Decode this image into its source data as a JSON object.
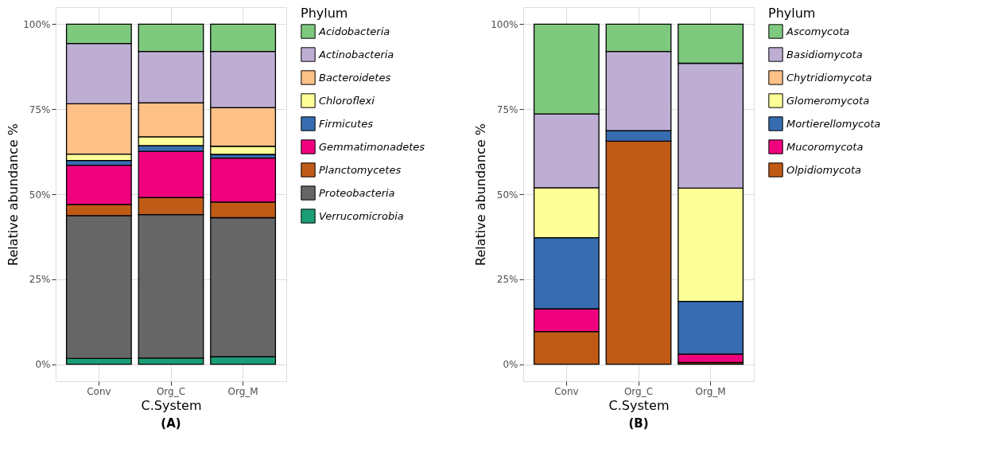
{
  "chart_data": [
    {
      "type": "bar",
      "stacked": true,
      "xlabel": "C.System",
      "ylabel": "Relative abundance %",
      "legend_title": "Phylum",
      "legend": "right",
      "grid": true,
      "categories": [
        "Conv",
        "Org_C",
        "Org_M"
      ],
      "ylim": [
        -5,
        105
      ],
      "yticks": [
        {
          "value": 0,
          "label": "0%"
        },
        {
          "value": 25,
          "label": "25%"
        },
        {
          "value": 50,
          "label": "50%"
        },
        {
          "value": 75,
          "label": "75%"
        },
        {
          "value": 100,
          "label": "100%"
        }
      ],
      "annotations": [
        "(A)"
      ],
      "series": [
        {
          "name": "Verrucomicrobia",
          "color": "#1b9e77",
          "values": [
            1.7,
            1.8,
            2.2
          ]
        },
        {
          "name": "Proteobacteria",
          "color": "#666666",
          "values": [
            42.0,
            42.2,
            40.9
          ]
        },
        {
          "name": "Planctomycetes",
          "color": "#bf5b17",
          "values": [
            3.3,
            5.0,
            4.6
          ]
        },
        {
          "name": "Gemmatimonadetes",
          "color": "#f0027f",
          "values": [
            11.5,
            13.6,
            12.9
          ]
        },
        {
          "name": "Firmicutes",
          "color": "#386cb0",
          "values": [
            1.4,
            1.7,
            1.1
          ]
        },
        {
          "name": "Chloroflexi",
          "color": "#ffff99",
          "values": [
            1.9,
            2.6,
            2.4
          ]
        },
        {
          "name": "Bacteroidetes",
          "color": "#fdc086",
          "values": [
            14.8,
            10.0,
            11.4
          ]
        },
        {
          "name": "Actinobacteria",
          "color": "#beaed4",
          "values": [
            17.7,
            15.1,
            16.5
          ]
        },
        {
          "name": "Acidobacteria",
          "color": "#7fc97f",
          "values": [
            5.7,
            8.0,
            8.0
          ]
        }
      ]
    },
    {
      "type": "bar",
      "stacked": true,
      "xlabel": "C.System",
      "ylabel": "Relative abundance %",
      "legend_title": "Phylum",
      "legend": "right",
      "grid": true,
      "categories": [
        "Conv",
        "Org_C",
        "Org_M"
      ],
      "ylim": [
        -5,
        105
      ],
      "yticks": [
        {
          "value": 0,
          "label": "0%"
        },
        {
          "value": 25,
          "label": "25%"
        },
        {
          "value": 50,
          "label": "50%"
        },
        {
          "value": 75,
          "label": "75%"
        },
        {
          "value": 100,
          "label": "100%"
        }
      ],
      "annotations": [
        "(B)"
      ],
      "series": [
        {
          "name": "Olpidiomycota",
          "color": "#bf5b17",
          "values": [
            9.6,
            65.6,
            0.5
          ]
        },
        {
          "name": "Mucoromycota",
          "color": "#f0027f",
          "values": [
            6.7,
            0,
            2.5
          ]
        },
        {
          "name": "Mortierellomycota",
          "color": "#386cb0",
          "values": [
            20.9,
            3.1,
            15.5
          ]
        },
        {
          "name": "Glomeromycota",
          "color": "#ffff99",
          "values": [
            14.7,
            0,
            33.3
          ]
        },
        {
          "name": "Chytridiomycota",
          "color": "#fdc086",
          "values": [
            null,
            0,
            0
          ]
        },
        {
          "name": "Basidiomycota",
          "color": "#beaed4",
          "values": [
            21.7,
            23.3,
            36.7
          ]
        },
        {
          "name": "Ascomycota",
          "color": "#7fc97f",
          "values": [
            26.4,
            8.0,
            11.5
          ]
        }
      ]
    }
  ]
}
